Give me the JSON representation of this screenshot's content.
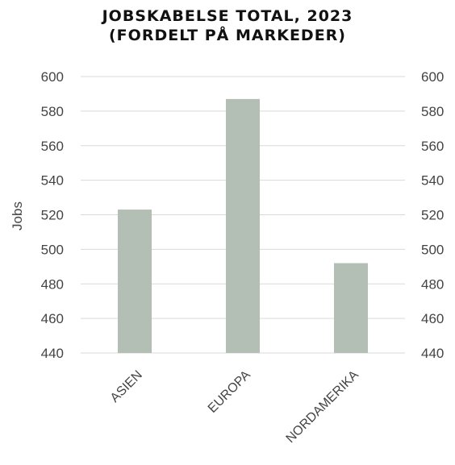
{
  "chart_data": {
    "type": "bar",
    "title_line1": "JOBSKABELSE TOTAL, 2023",
    "title_line2": "(FORDELT PÅ MARKEDER)",
    "xlabel": "",
    "ylabel": "Jobs",
    "categories": [
      "ASIEN",
      "EUROPA",
      "NORDAMERIKA"
    ],
    "values": [
      523,
      587,
      492
    ],
    "ylim": [
      440,
      600
    ],
    "yticks": [
      "440",
      "460",
      "480",
      "500",
      "520",
      "540",
      "560",
      "580",
      "600"
    ],
    "secondary_axis": true,
    "grid": true,
    "legend": "none",
    "bar_color": "#b3beb4",
    "grid_color": "#d9d9d9"
  }
}
